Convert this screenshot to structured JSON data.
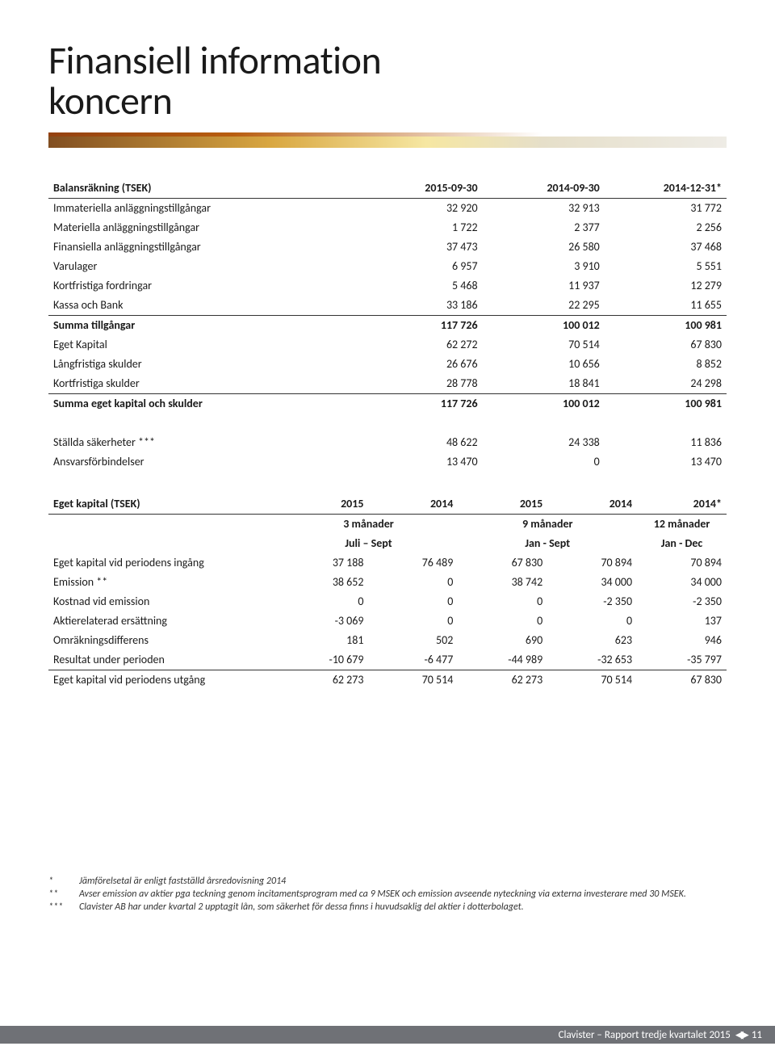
{
  "title": {
    "line1": "Finansiell information",
    "line2": "koncern"
  },
  "colors": {
    "text": "#1a1a1a",
    "footer_bg": "#6f7176",
    "rule": "#333333"
  },
  "table1": {
    "header": [
      "Balansräkning (TSEK)",
      "2015-09-30",
      "2014-09-30",
      "2014-12-31*"
    ],
    "rows": [
      [
        "Immateriella anläggningstillgångar",
        "32 920",
        "32 913",
        "31 772"
      ],
      [
        "Materiella anläggningstillgångar",
        "1 722",
        "2 377",
        "2 256"
      ],
      [
        "Finansiella anläggningstillgångar",
        "37 473",
        "26 580",
        "37 468"
      ],
      [
        "Varulager",
        "6 957",
        "3 910",
        "5 551"
      ],
      [
        "Kortfristiga fordringar",
        "5 468",
        "11 937",
        "12 279"
      ],
      [
        "Kassa och Bank",
        "33 186",
        "22 295",
        "11 655"
      ]
    ],
    "sum1": [
      "Summa tillgångar",
      "117 726",
      "100 012",
      "100 981"
    ],
    "rows2": [
      [
        "Eget Kapital",
        "62 272",
        "70 514",
        "67 830"
      ],
      [
        "Långfristiga skulder",
        "26 676",
        "10 656",
        "8 852"
      ],
      [
        "Kortfristiga skulder",
        "28 778",
        "18 841",
        "24 298"
      ]
    ],
    "sum2": [
      "Summa eget kapital och skulder",
      "117 726",
      "100 012",
      "100 981"
    ],
    "rows3": [
      [
        "Ställda säkerheter ***",
        "48 622",
        "24 338",
        "11 836"
      ],
      [
        "Ansvarsförbindelser",
        "13 470",
        "0",
        "13 470"
      ]
    ]
  },
  "table2": {
    "super_header": [
      "",
      "3 månader",
      "9 månader",
      "12 månader"
    ],
    "sub_header": [
      "",
      "Juli – Sept",
      "Jan - Sept",
      "Jan - Dec"
    ],
    "year_header": [
      "Eget kapital (TSEK)",
      "2015",
      "2014",
      "2015",
      "2014",
      "2014*"
    ],
    "rows": [
      [
        "Eget kapital vid periodens ingång",
        "37 188",
        "76 489",
        "67 830",
        "70 894",
        "70 894"
      ],
      [
        "Emission **",
        "38 652",
        "0",
        "38 742",
        "34 000",
        "34 000"
      ],
      [
        "Kostnad vid emission",
        "0",
        "0",
        "0",
        "-2 350",
        "-2 350"
      ],
      [
        "Aktierelaterad ersättning",
        "-3 069",
        "0",
        "0",
        "0",
        "137"
      ],
      [
        "Omräkningsdifferens",
        "181",
        "502",
        "690",
        "623",
        "946"
      ],
      [
        "Resultat under perioden",
        "-10 679",
        "-6 477",
        "-44 989",
        "-32 653",
        "-35 797"
      ]
    ],
    "final": [
      "Eget kapital vid periodens utgång",
      "62 273",
      "70 514",
      "62 273",
      "70 514",
      "67 830"
    ]
  },
  "footnotes": [
    {
      "mark": "*",
      "text": "Jämförelsetal är enligt fastställd årsredovisning 2014"
    },
    {
      "mark": "**",
      "text": "Avser emission av aktier pga teckning genom incitamentsprogram med ca 9 MSEK och emission avseende nyteckning via externa investerare med 30 MSEK."
    },
    {
      "mark": "***",
      "text": "Clavister AB har under kvartal 2 upptagit lån, som säkerhet för dessa finns i huvudsaklig del aktier i dotterbolaget."
    }
  ],
  "footer": {
    "text": "Clavister – Rapport tredje kvartalet 2015",
    "page": "11"
  }
}
